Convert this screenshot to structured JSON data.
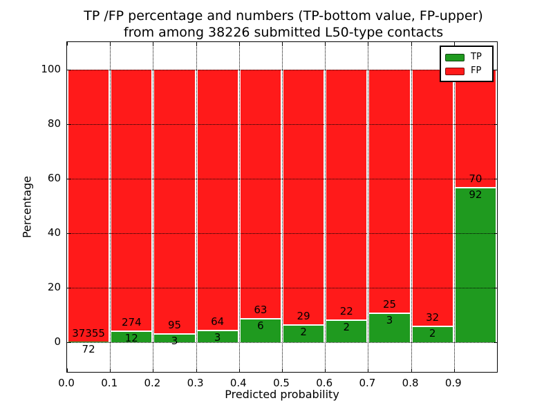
{
  "chart_data": {
    "type": "bar",
    "stacked": true,
    "title_line1": "TP /FP percentage and numbers (TP-bottom value, FP-upper)",
    "title_line2": "from among 38226 submitted L50-type contacts",
    "xlabel": "Predicted probability",
    "ylabel": "Percentage",
    "xlim": [
      0.0,
      1.0
    ],
    "ylim": [
      -11,
      110
    ],
    "x_ticks": [
      {
        "value": 0.0,
        "label": "0.0"
      },
      {
        "value": 0.1,
        "label": "0.1"
      },
      {
        "value": 0.2,
        "label": "0.2"
      },
      {
        "value": 0.3,
        "label": "0.3"
      },
      {
        "value": 0.4,
        "label": "0.4"
      },
      {
        "value": 0.5,
        "label": "0.5"
      },
      {
        "value": 0.6,
        "label": "0.6"
      },
      {
        "value": 0.7,
        "label": "0.7"
      },
      {
        "value": 0.8,
        "label": "0.8"
      },
      {
        "value": 0.9,
        "label": "0.9"
      }
    ],
    "y_ticks": [
      {
        "value": 0,
        "label": "0"
      },
      {
        "value": 20,
        "label": "20"
      },
      {
        "value": 40,
        "label": "40"
      },
      {
        "value": 60,
        "label": "60"
      },
      {
        "value": 80,
        "label": "80"
      },
      {
        "value": 100,
        "label": "100"
      }
    ],
    "grid": "dotted",
    "bin_width": 0.1,
    "bins": [
      {
        "x_start": 0.0,
        "tp_count": 72,
        "fp_count": 37355
      },
      {
        "x_start": 0.1,
        "tp_count": 12,
        "fp_count": 274
      },
      {
        "x_start": 0.2,
        "tp_count": 3,
        "fp_count": 95
      },
      {
        "x_start": 0.3,
        "tp_count": 3,
        "fp_count": 64
      },
      {
        "x_start": 0.4,
        "tp_count": 6,
        "fp_count": 63
      },
      {
        "x_start": 0.5,
        "tp_count": 2,
        "fp_count": 29
      },
      {
        "x_start": 0.6,
        "tp_count": 2,
        "fp_count": 22
      },
      {
        "x_start": 0.7,
        "tp_count": 3,
        "fp_count": 25
      },
      {
        "x_start": 0.8,
        "tp_count": 2,
        "fp_count": 32
      },
      {
        "x_start": 0.9,
        "tp_count": 92,
        "fp_count": 70
      }
    ],
    "legend": {
      "position": "upper right",
      "entries": [
        {
          "label": "TP",
          "color": "#1f9a1f"
        },
        {
          "label": "FP",
          "color": "#ff1a1a"
        }
      ]
    },
    "colors": {
      "tp_bar": "#1f9a1f",
      "fp_bar": "#ff1a1a",
      "grid": "#000000",
      "frame": "#000000",
      "background": "#ffffff",
      "segment_edge": "#ffffff"
    }
  }
}
